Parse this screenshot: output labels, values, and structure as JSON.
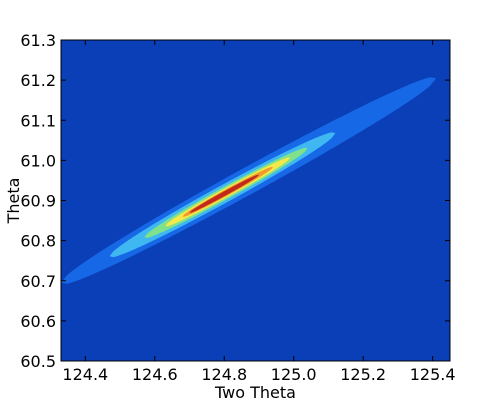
{
  "chart_data": {
    "type": "contour",
    "title": "",
    "xlabel": "Two Theta",
    "ylabel": "Theta",
    "xlim": [
      124.33,
      125.45
    ],
    "ylim": [
      60.5,
      61.3
    ],
    "xticks": [
      124.4,
      124.6,
      124.8,
      125.0,
      125.2,
      125.4
    ],
    "xtick_labels": [
      "124.4",
      "124.6",
      "124.8",
      "125.0",
      "125.2",
      "125.4"
    ],
    "yticks": [
      60.5,
      60.6,
      60.7,
      60.8,
      60.9,
      61.0,
      61.1,
      61.2,
      61.3
    ],
    "ytick_labels": [
      "60.5",
      "60.6",
      "60.7",
      "60.8",
      "60.9",
      "61.0",
      "61.1",
      "61.2",
      "61.3"
    ],
    "grid": false,
    "legend": "none",
    "background_color": "#0b3fb8",
    "ridge": {
      "x": [
        124.33,
        125.4
      ],
      "y": [
        60.695,
        61.2
      ],
      "peak": {
        "x": 124.82,
        "y": 60.925
      }
    },
    "levels": [
      {
        "level": 1,
        "color": "#1768e6",
        "x_range": [
          124.33,
          125.41
        ]
      },
      {
        "level": 2,
        "color": "#3fb8f2",
        "x_range": [
          124.47,
          125.12
        ]
      },
      {
        "level": 3,
        "color": "#7fe28a",
        "x_range": [
          124.57,
          125.04
        ]
      },
      {
        "level": 4,
        "color": "#f5e84a",
        "x_range": [
          124.63,
          124.99
        ]
      },
      {
        "level": 5,
        "color": "#f09a2c",
        "x_range": [
          124.68,
          124.94
        ]
      },
      {
        "level": 6,
        "color": "#c02a1a",
        "x_range": [
          124.7,
          124.9
        ]
      }
    ]
  }
}
